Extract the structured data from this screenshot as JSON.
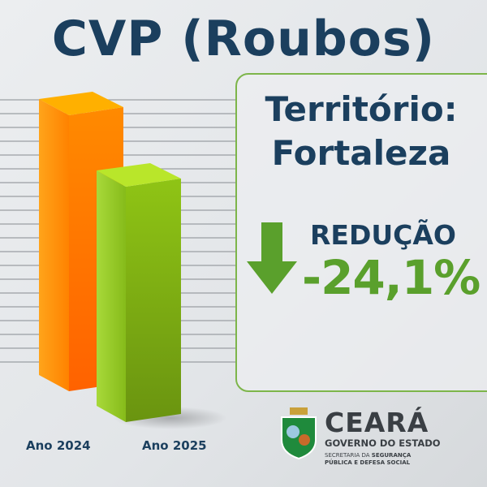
{
  "header": {
    "title": "CVP (Roubos)"
  },
  "panel": {
    "line1": "Território:",
    "line2": "Fortaleza",
    "trend_label": "REDUÇÃO",
    "change": "-24,1%",
    "trend_icon": "arrow-down-icon",
    "accent_color": "#5aa02c"
  },
  "chart_data": {
    "type": "bar",
    "categories": [
      "Ano 2024",
      "Ano 2025"
    ],
    "series_colors": [
      "#ff7a00",
      "#8cc21a"
    ],
    "change_label": "-24,1%",
    "grid": true,
    "xlabel": "",
    "ylabel": "",
    "title": ""
  },
  "logo": {
    "name": "CEARÁ",
    "subtitle": "GOVERNO DO ESTADO",
    "dept_line1_a": "SECRETARIA DA ",
    "dept_line1_b": "SEGURANÇA",
    "dept_line2": "PÚBLICA E DEFESA SOCIAL"
  },
  "colors": {
    "navy": "#1b3f5e",
    "green": "#5aa02c",
    "orange": "#ff7a00",
    "border": "#7db54a"
  }
}
